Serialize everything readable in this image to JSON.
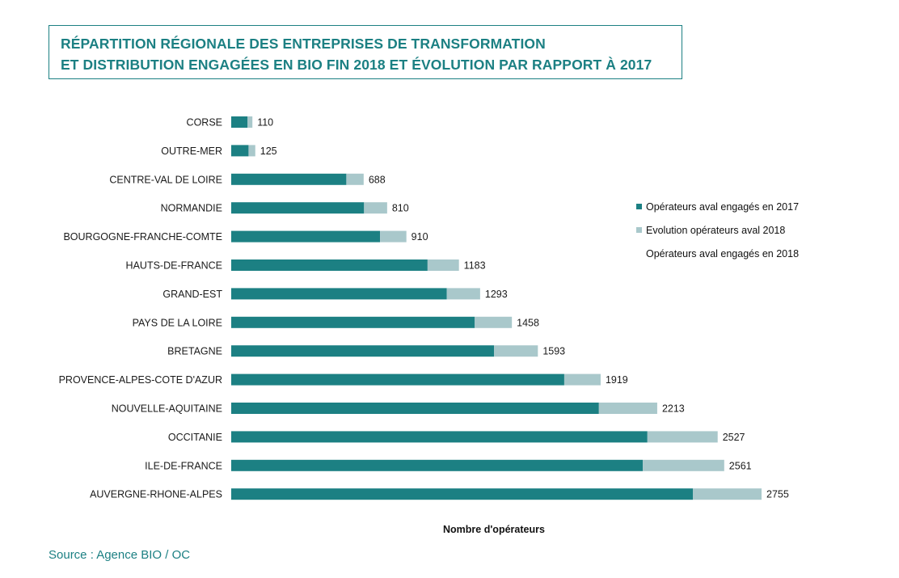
{
  "title": {
    "line1": "RÉPARTITION RÉGIONALE DES ENTREPRISES DE TRANSFORMATION",
    "line2": "ET DISTRIBUTION ENGAGÉES EN BIO FIN 2018 ET ÉVOLUTION PAR RAPPORT À 2017"
  },
  "legend": {
    "item_2017": "Opérateurs aval engagés en 2017",
    "item_evol": "Evolution opérateurs aval 2018",
    "item_2018": "Opérateurs aval engagés en 2018"
  },
  "source": "Source : Agence BIO / OC",
  "colors": {
    "base_2017": "#1c8083",
    "evolution_2018": "#a9c8cb",
    "title": "#1c8083"
  },
  "chart_data": {
    "type": "bar",
    "orientation": "horizontal",
    "stacked": true,
    "xlabel": "Nombre d'opérateurs",
    "xlim": [
      0,
      2755
    ],
    "grid": false,
    "legend_position": "right",
    "categories": [
      "CORSE",
      "OUTRE-MER",
      "CENTRE-VAL DE LOIRE",
      "NORMANDIE",
      "BOURGOGNE-FRANCHE-COMTE",
      "HAUTS-DE-FRANCE",
      "GRAND-EST",
      "PAYS DE LA LOIRE",
      "BRETAGNE",
      "PROVENCE-ALPES-COTE D'AZUR",
      "NOUVELLE-AQUITAINE",
      "OCCITANIE",
      "ILE-DE-FRANCE",
      "AUVERGNE-RHONE-ALPES"
    ],
    "series": [
      {
        "name": "Opérateurs aval engagés en 2017",
        "values": [
          85,
          90,
          598,
          690,
          773,
          1020,
          1120,
          1265,
          1365,
          1730,
          1910,
          2162,
          2138,
          2398
        ]
      },
      {
        "name": "Evolution opérateurs aval 2018",
        "values": [
          25,
          35,
          90,
          120,
          137,
          163,
          173,
          193,
          228,
          189,
          303,
          365,
          423,
          357
        ]
      }
    ],
    "totals_2018": [
      110,
      125,
      688,
      810,
      910,
      1183,
      1293,
      1458,
      1593,
      1919,
      2213,
      2527,
      2561,
      2755
    ]
  }
}
